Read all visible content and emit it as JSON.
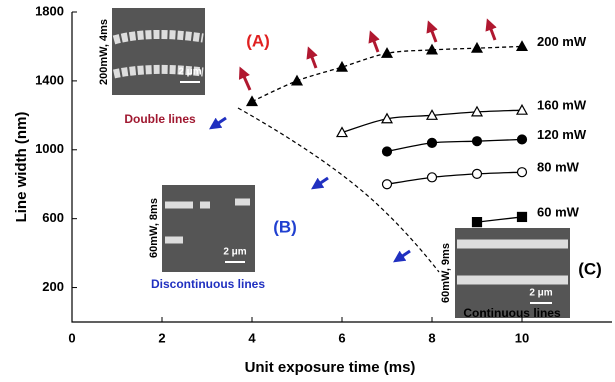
{
  "chart_data": {
    "type": "line",
    "xlabel": "Unit exposure time (ms)",
    "ylabel": "Line width (nm)",
    "xlim": [
      0,
      12
    ],
    "ylim": [
      0,
      1800
    ],
    "xticks": [
      0,
      2,
      4,
      6,
      8,
      10
    ],
    "yticks": [
      200,
      600,
      1000,
      1400,
      1800
    ],
    "series": [
      {
        "name": "200 mW",
        "color": "#000000",
        "marker": "triangle",
        "filled": true,
        "dashed": true,
        "x": [
          4,
          5,
          6,
          7,
          8,
          9,
          10
        ],
        "values": [
          1280,
          1400,
          1480,
          1560,
          1580,
          1590,
          1600
        ]
      },
      {
        "name": "160 mW",
        "color": "#000000",
        "marker": "triangle",
        "filled": false,
        "dashed": false,
        "x": [
          6,
          7,
          8,
          9,
          10
        ],
        "values": [
          1100,
          1180,
          1200,
          1220,
          1230
        ]
      },
      {
        "name": "120 mW",
        "color": "#000000",
        "marker": "circle",
        "filled": true,
        "dashed": false,
        "x": [
          7,
          8,
          9,
          10
        ],
        "values": [
          990,
          1040,
          1050,
          1060
        ]
      },
      {
        "name": "80 mW",
        "color": "#000000",
        "marker": "circle",
        "filled": false,
        "dashed": false,
        "x": [
          7,
          8,
          9,
          10
        ],
        "values": [
          800,
          840,
          860,
          870
        ]
      },
      {
        "name": "60 mW",
        "color": "#000000",
        "marker": "square",
        "filled": true,
        "dashed": false,
        "x": [
          9,
          10
        ],
        "values": [
          580,
          610
        ]
      }
    ],
    "annotations": [
      {
        "text": "(A)",
        "color": "#e02020"
      },
      {
        "text": "(B)",
        "color": "#2040d0"
      },
      {
        "text": "(C)",
        "color": "#000000"
      },
      {
        "text": "Double lines",
        "color": "#a01830"
      },
      {
        "text": "Discontinuous lines",
        "color": "#2030c0"
      },
      {
        "text": "Continuous lines",
        "color": "#000000"
      },
      {
        "text": "200mW, 4ms",
        "color": "#000000"
      },
      {
        "text": "60mW, 8ms",
        "color": "#000000"
      },
      {
        "text": "60mW, 9ms",
        "color": "#000000"
      },
      {
        "text": "2 μm",
        "color": "#ffffff"
      },
      {
        "text": "2 μm",
        "color": "#ffffff"
      },
      {
        "text": "2 μm",
        "color": "#ffffff"
      }
    ]
  }
}
